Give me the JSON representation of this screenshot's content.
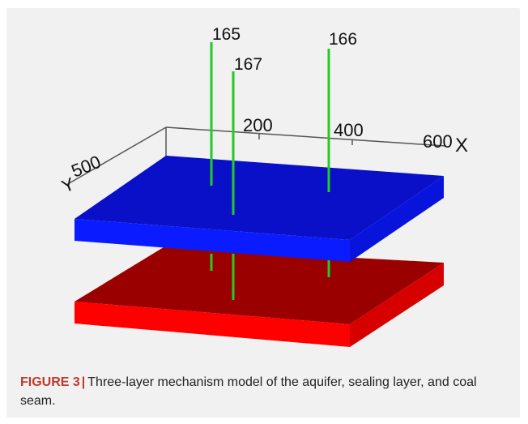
{
  "figure": {
    "axes": {
      "x_ticks": [
        "200",
        "400",
        "600"
      ],
      "x_label": "X",
      "y_tick": "500",
      "y_label": "Y"
    },
    "wells": [
      {
        "id": "165"
      },
      {
        "id": "167"
      },
      {
        "id": "166"
      }
    ],
    "colors": {
      "top_layer": "#0a10c8",
      "bottom_layer": "#b30000",
      "well_line": "#22cc22"
    }
  },
  "caption": {
    "label": "FIGURE 3",
    "separator": "|",
    "text": "Three-layer mechanism model of the aquifer, sealing layer, and coal seam."
  }
}
